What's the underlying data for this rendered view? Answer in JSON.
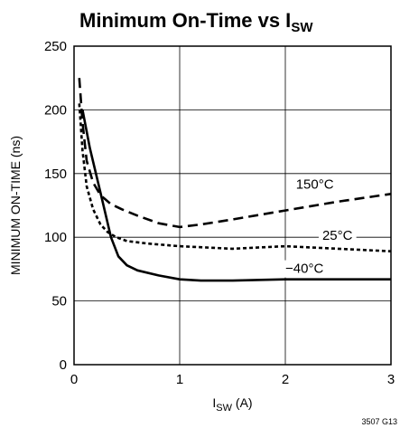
{
  "chart_data": {
    "type": "line",
    "title": {
      "main": "Minimum On-Time vs I",
      "sub": "SW"
    },
    "xlabel": {
      "main": "I",
      "sub": "SW",
      "unit": " (A)"
    },
    "ylabel": "MINIMUM ON-TIME (ns)",
    "xlim": [
      0,
      3
    ],
    "ylim": [
      0,
      250
    ],
    "xticks": [
      "0",
      "1",
      "2",
      "3"
    ],
    "yticks": [
      "0",
      "50",
      "100",
      "150",
      "200",
      "250"
    ],
    "grid": true,
    "figure_code": "3507 G13",
    "series": [
      {
        "name": "150°C",
        "style": "dashed",
        "x": [
          0.05,
          0.08,
          0.12,
          0.18,
          0.25,
          0.35,
          0.45,
          0.6,
          0.8,
          1.0,
          1.2,
          1.5,
          2.0,
          2.5,
          3.0
        ],
        "y": [
          225,
          190,
          160,
          143,
          133,
          126,
          122,
          117,
          111,
          108,
          110,
          114,
          121,
          128,
          134
        ]
      },
      {
        "name": "25°C",
        "style": "dotted",
        "x": [
          0.05,
          0.08,
          0.12,
          0.18,
          0.25,
          0.32,
          0.4,
          0.5,
          0.7,
          1.0,
          1.5,
          2.0,
          2.5,
          3.0
        ],
        "y": [
          205,
          168,
          140,
          122,
          110,
          104,
          100,
          97,
          95,
          93,
          91,
          93,
          91,
          89
        ]
      },
      {
        "name": "−40°C",
        "style": "solid",
        "x": [
          0.08,
          0.15,
          0.25,
          0.35,
          0.42,
          0.5,
          0.6,
          0.8,
          1.0,
          1.2,
          1.5,
          2.0,
          2.5,
          3.0
        ],
        "y": [
          200,
          170,
          135,
          100,
          85,
          78,
          74,
          70,
          67,
          66,
          66,
          67,
          67,
          67
        ]
      }
    ],
    "annotations": [
      {
        "text": "150°C",
        "x": 2.1,
        "y": 138
      },
      {
        "text": "25°C",
        "x": 2.35,
        "y": 98
      },
      {
        "text": "−40°C",
        "x": 2.0,
        "y": 72
      }
    ]
  }
}
